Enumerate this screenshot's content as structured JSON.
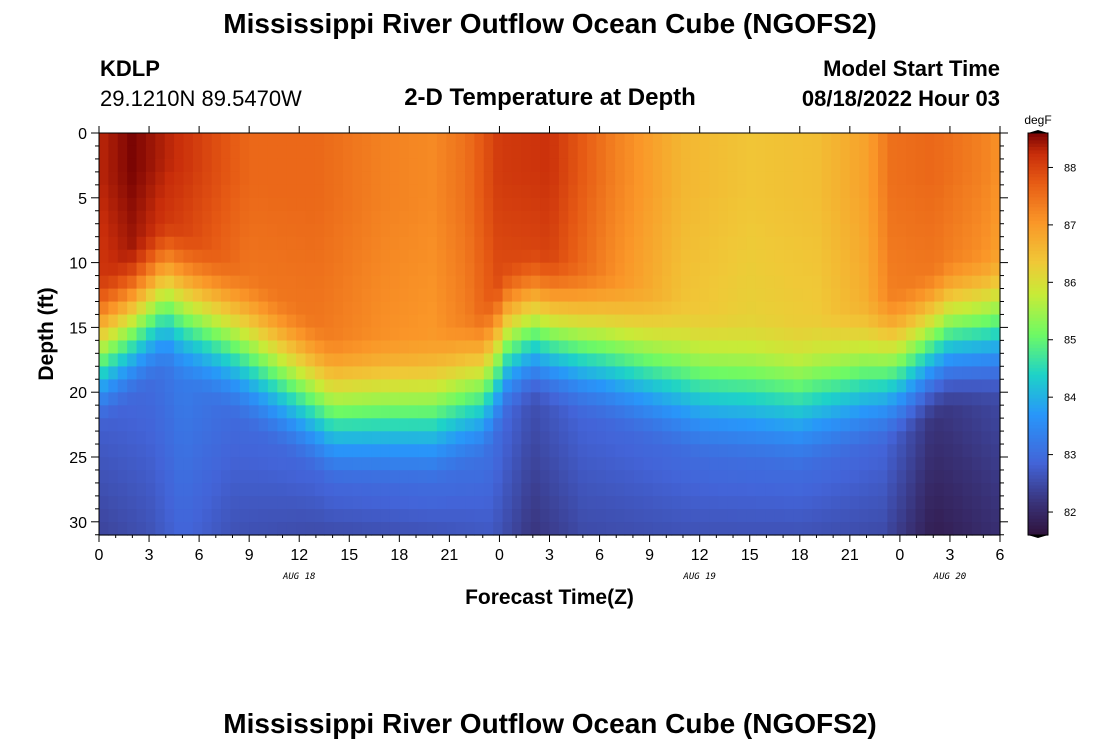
{
  "page": {
    "title_top": "Mississippi River Outflow Ocean Cube (NGOFS2)",
    "title_bottom": "Mississippi River Outflow Ocean Cube (NGOFS2)",
    "station_id": "KDLP",
    "station_coords": "29.1210N  89.5470W",
    "subtitle": "2-D Temperature at Depth",
    "model_start_label": "Model Start Time",
    "model_start_value": "08/18/2022 Hour 03"
  },
  "chart_data": {
    "type": "heatmap",
    "title": "2-D Temperature at Depth",
    "xlabel": "Forecast Time(Z)",
    "ylabel": "Depth (ft)",
    "x_hours_range": [
      0,
      54
    ],
    "x_tick_labels": [
      "0",
      "3",
      "6",
      "9",
      "12",
      "15",
      "18",
      "21",
      "0",
      "3",
      "6",
      "9",
      "12",
      "15",
      "18",
      "21",
      "0",
      "3",
      "6"
    ],
    "date_labels": [
      {
        "text": "AUG 18",
        "hour": 12
      },
      {
        "text": "AUG 19",
        "hour": 36
      },
      {
        "text": "AUG 20",
        "hour": 51
      }
    ],
    "y_range": [
      0,
      31
    ],
    "y_ticks": [
      0,
      5,
      10,
      15,
      20,
      25,
      30
    ],
    "colorbar": {
      "unit": "degF",
      "range": [
        81.6,
        88.6
      ],
      "ticks": [
        82,
        83,
        84,
        85,
        86,
        87,
        88
      ]
    },
    "thermocline_depth_ft": {
      "hours": [
        0,
        4,
        8,
        14,
        20,
        23,
        24.5,
        26,
        30,
        36,
        42,
        48,
        51,
        54
      ],
      "depth": [
        17,
        12.5,
        16,
        21.5,
        21.5,
        19.5,
        16,
        15,
        16.5,
        19.5,
        20.5,
        18,
        15.5,
        15
      ]
    },
    "surface_temp_degF": {
      "hours": [
        0,
        2,
        5,
        9,
        13,
        17,
        20,
        22,
        24,
        27,
        31,
        35,
        39,
        43,
        46,
        47.5,
        50,
        53,
        54
      ],
      "temp": [
        88.3,
        88.6,
        88.2,
        87.6,
        87.6,
        87.3,
        87.2,
        87.5,
        88.1,
        88.2,
        87.3,
        86.6,
        86.4,
        86.5,
        86.9,
        87.5,
        87.6,
        87.3,
        87.1
      ]
    },
    "bottom_temp_degF": {
      "hours": [
        0,
        3,
        5,
        8,
        13,
        20,
        23.5,
        26,
        29,
        35,
        42,
        47,
        50,
        54
      ],
      "temp": [
        82.4,
        82.6,
        82.9,
        82.6,
        82.5,
        82.6,
        82.7,
        82.2,
        82.5,
        82.6,
        82.6,
        82.5,
        81.8,
        82.1
      ]
    }
  }
}
